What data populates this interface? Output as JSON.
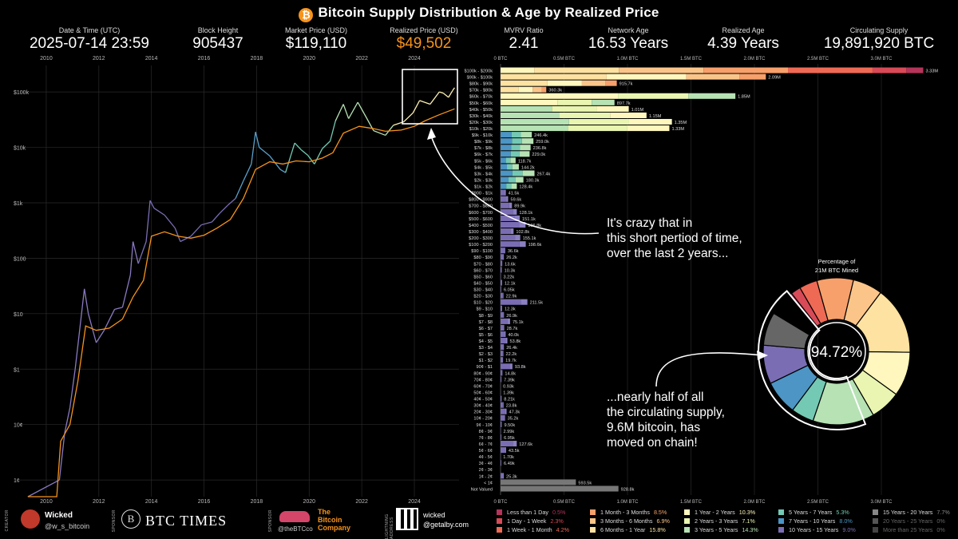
{
  "header": {
    "title": "Bitcoin Supply Distribution & Age by Realized Price",
    "logo_glyph": "₿",
    "stats": [
      {
        "label": "Date & Time (UTC)",
        "value": "2025-07-14 23:59",
        "color": "#ffffff"
      },
      {
        "label": "Block Height",
        "value": "905437",
        "color": "#ffffff"
      },
      {
        "label": "Market Price (USD)",
        "value": "$119,110",
        "color": "#ffffff"
      },
      {
        "label": "Realized Price (USD)",
        "value": "$49,502",
        "color": "#f7931a"
      },
      {
        "label": "MVRV Ratio",
        "value": "2.41",
        "color": "#ffffff"
      },
      {
        "label": "Network Age",
        "value": "16.53 Years",
        "color": "#ffffff"
      },
      {
        "label": "Realized Age",
        "value": "4.39 Years",
        "color": "#ffffff"
      },
      {
        "label": "Circulating Supply",
        "value": "19,891,920 BTC",
        "color": "#ffffff"
      }
    ]
  },
  "chart_data": [
    {
      "type": "line",
      "x_ticks": [
        "2010",
        "2012",
        "2014",
        "2016",
        "2018",
        "2020",
        "2022",
        "2024"
      ],
      "y_ticks": [
        "$100k",
        "$10k",
        "$1k",
        "$100",
        "$10",
        "$1",
        "10¢",
        "1¢"
      ],
      "y_scale": "log",
      "series": [
        {
          "values_desc": "market price",
          "color_by": "coin age",
          "points": [
            [
              2009.3,
              0.005
            ],
            [
              2010.5,
              0.01
            ],
            [
              2010.7,
              0.07
            ],
            [
              2010.9,
              0.2
            ],
            [
              2011.1,
              1
            ],
            [
              2011.45,
              28
            ],
            [
              2011.6,
              10
            ],
            [
              2011.9,
              3
            ],
            [
              2012.2,
              5
            ],
            [
              2012.6,
              12
            ],
            [
              2012.9,
              13
            ],
            [
              2013.2,
              50
            ],
            [
              2013.3,
              200
            ],
            [
              2013.5,
              80
            ],
            [
              2013.8,
              200
            ],
            [
              2013.95,
              1100
            ],
            [
              2014.1,
              800
            ],
            [
              2014.5,
              600
            ],
            [
              2014.9,
              350
            ],
            [
              2015.1,
              200
            ],
            [
              2015.5,
              250
            ],
            [
              2015.9,
              400
            ],
            [
              2016.3,
              450
            ],
            [
              2016.6,
              650
            ],
            [
              2016.9,
              900
            ],
            [
              2017.2,
              1200
            ],
            [
              2017.5,
              2500
            ],
            [
              2017.8,
              5000
            ],
            [
              2017.96,
              19000
            ],
            [
              2018.1,
              10000
            ],
            [
              2018.5,
              7000
            ],
            [
              2018.9,
              4000
            ],
            [
              2019.1,
              3500
            ],
            [
              2019.45,
              12000
            ],
            [
              2019.7,
              9000
            ],
            [
              2019.95,
              7200
            ],
            [
              2020.2,
              5000
            ],
            [
              2020.5,
              9500
            ],
            [
              2020.8,
              13000
            ],
            [
              2021.0,
              30000
            ],
            [
              2021.3,
              60000
            ],
            [
              2021.5,
              33000
            ],
            [
              2021.85,
              65000
            ],
            [
              2022.1,
              40000
            ],
            [
              2022.45,
              20000
            ],
            [
              2022.9,
              16500
            ],
            [
              2023.2,
              25000
            ],
            [
              2023.6,
              29000
            ],
            [
              2023.95,
              42000
            ],
            [
              2024.2,
              70000
            ],
            [
              2024.6,
              60000
            ],
            [
              2024.95,
              100000
            ],
            [
              2025.1,
              95000
            ],
            [
              2025.3,
              80000
            ],
            [
              2025.45,
              105000
            ],
            [
              2025.53,
              119110
            ]
          ]
        },
        {
          "values_desc": "realized price",
          "color": "#f7931a",
          "points": [
            [
              2009.3,
              0.005
            ],
            [
              2010.4,
              0.005
            ],
            [
              2010.55,
              0.05
            ],
            [
              2010.9,
              0.1
            ],
            [
              2011.2,
              0.6
            ],
            [
              2011.5,
              6
            ],
            [
              2011.9,
              5
            ],
            [
              2012.4,
              5.5
            ],
            [
              2012.9,
              8
            ],
            [
              2013.3,
              20
            ],
            [
              2013.7,
              40
            ],
            [
              2014.0,
              250
            ],
            [
              2014.5,
              300
            ],
            [
              2015.0,
              250
            ],
            [
              2015.5,
              230
            ],
            [
              2016.0,
              260
            ],
            [
              2016.5,
              350
            ],
            [
              2017.0,
              500
            ],
            [
              2017.5,
              1200
            ],
            [
              2017.96,
              4000
            ],
            [
              2018.5,
              5500
            ],
            [
              2019.0,
              5000
            ],
            [
              2019.5,
              5700
            ],
            [
              2020.0,
              5500
            ],
            [
              2020.5,
              6400
            ],
            [
              2020.9,
              8000
            ],
            [
              2021.3,
              18000
            ],
            [
              2021.9,
              24000
            ],
            [
              2022.4,
              22000
            ],
            [
              2022.9,
              19500
            ],
            [
              2023.5,
              20500
            ],
            [
              2024.0,
              24000
            ],
            [
              2024.4,
              30000
            ],
            [
              2024.9,
              38000
            ],
            [
              2025.53,
              49502
            ]
          ]
        }
      ]
    },
    {
      "type": "bar",
      "orientation": "horizontal",
      "stacked": true,
      "x_ticks": [
        "0 BTC",
        "0.5M BTC",
        "1.0M BTC",
        "1.5M BTC",
        "2.0M BTC",
        "2.5M BTC",
        "3.0M BTC"
      ],
      "x_max_btc": 3.3,
      "categories": [
        "$100k - $200k",
        "$90k - $100k",
        "$80k - $90k",
        "$70k - $80k",
        "$60k - $70k",
        "$50k - $60k",
        "$40k - $50k",
        "$30k - $40k",
        "$20k - $30k",
        "$10k - $20k",
        "$9k - $10k",
        "$8k - $9k",
        "$7k - $8k",
        "$6k - $7k",
        "$5k - $6k",
        "$4k - $5k",
        "$3k - $4k",
        "$2k - $3k",
        "$1k - $2k",
        "$900 - $1k",
        "$800 - $900",
        "$700 - $800",
        "$600 - $700",
        "$500 - $600",
        "$400 - $500",
        "$300 - $400",
        "$200 - $300",
        "$100 - $200",
        "$90 - $100",
        "$80 - $90",
        "$70 - $80",
        "$60 - $70",
        "$50 - $60",
        "$40 - $50",
        "$30 - $40",
        "$20 - $30",
        "$10 - $20",
        "$9 - $10",
        "$8 - $9",
        "$7 - $8",
        "$6 - $7",
        "$5 - $6",
        "$4 - $5",
        "$3 - $4",
        "$2 - $3",
        "$1 - $2",
        "90¢ - $1",
        "80¢ - 90¢",
        "70¢ - 80¢",
        "60¢ - 70¢",
        "50¢ - 60¢",
        "40¢ - 50¢",
        "30¢ - 40¢",
        "20¢ - 30¢",
        "10¢ - 20¢",
        "9¢ - 10¢",
        "8¢ - 9¢",
        "7¢ - 8¢",
        "6¢ - 7¢",
        "5¢ - 6¢",
        "4¢ - 5¢",
        "3¢ - 4¢",
        "2¢ - 3¢",
        "1¢ - 2¢",
        "< 1¢",
        "Not Valued"
      ],
      "value_labels": [
        "3.33M",
        "2.09M",
        "915.7k",
        "360.3k",
        "1.85M",
        "897.7k",
        "1.01M",
        "1.15M",
        "1.35M",
        "1.33M",
        "246.4k",
        "259.0k",
        "236.8k",
        "229.0k",
        "118.7k",
        "144.2k",
        "267.4k",
        "180.3k",
        "128.4k",
        "41.5k",
        "59.6k",
        "89.9k",
        "128.1k",
        "151.1k",
        "196.8k",
        "102.8k",
        "155.1k",
        "198.6k",
        "36.6k",
        "26.2k",
        "13.6k",
        "10.3k",
        "3.22k",
        "12.1k",
        "6.05k",
        "22.9k",
        "211.5k",
        "12.3k",
        "26.9k",
        "75.1k",
        "28.7k",
        "40.0k",
        "53.8k",
        "26.4k",
        "22.2k",
        "19.7k",
        "93.8k",
        "14.8k",
        "7.39k",
        "0.93k",
        "1.39k",
        "8.21k",
        "23.8k",
        "47.3k",
        "35.2k",
        "9.50k",
        "2.99k",
        "6.95k",
        "127.6k",
        "43.5k",
        "1.70k",
        "6.49k",
        "",
        "25.3k",
        "593.5k",
        "928.8k"
      ],
      "values": [
        3330000,
        2090000,
        915700,
        360300,
        1850000,
        897700,
        1010000,
        1150000,
        1350000,
        1330000,
        246400,
        259000,
        236800,
        229000,
        118700,
        144200,
        267400,
        180300,
        128400,
        41500,
        59600,
        89900,
        128100,
        151100,
        196800,
        102800,
        155100,
        198600,
        36600,
        26200,
        13600,
        10300,
        3220,
        12100,
        6050,
        22900,
        211500,
        12300,
        26900,
        75100,
        28700,
        40000,
        53800,
        26400,
        22200,
        19700,
        93800,
        14800,
        7390,
        930,
        1390,
        8210,
        23800,
        47300,
        35200,
        9500,
        2990,
        6950,
        127600,
        43500,
        1700,
        6490,
        0,
        25300,
        593500,
        928800
      ]
    },
    {
      "type": "pie",
      "donut": true,
      "title": "Percentage of 21M BTC Mined",
      "center_label": "94.72%",
      "slices": [
        {
          "name": "Less than 1 Day",
          "value": 0.5,
          "color": "#b5345a"
        },
        {
          "name": "1 Day - 1 Week",
          "value": 2.3,
          "color": "#d84a57"
        },
        {
          "name": "1 Week - 1 Month",
          "value": 4.2,
          "color": "#ee6a55"
        },
        {
          "name": "1 Month - 3 Months",
          "value": 8.5,
          "color": "#f7a06b"
        },
        {
          "name": "3 Months - 6 Months",
          "value": 6.9,
          "color": "#fbc58a"
        },
        {
          "name": "6 Months - 1 Year",
          "value": 15.8,
          "color": "#fde2a2"
        },
        {
          "name": "1 Year - 2 Years",
          "value": 10.3,
          "color": "#fff7bd"
        },
        {
          "name": "2 Years - 3 Years",
          "value": 7.1,
          "color": "#e9f5b0"
        },
        {
          "name": "3 Years - 5 Years",
          "value": 14.3,
          "color": "#b6e2b4"
        },
        {
          "name": "5 Years - 7 Years",
          "value": 5.3,
          "color": "#74c9b4"
        },
        {
          "name": "7 Years - 10 Years",
          "value": 8.0,
          "color": "#4c95c4"
        },
        {
          "name": "10 Years - 15 Years",
          "value": 9.0,
          "color": "#7b6db4"
        },
        {
          "name": "15 Years - 20 Years",
          "value": 7.7,
          "color": "#666666"
        },
        {
          "name": "20 Years - 25 Years",
          "value": 0,
          "color": "#444444"
        },
        {
          "name": "More than 25 Years",
          "value": 0,
          "color": "#333333"
        }
      ]
    }
  ],
  "legend": [
    {
      "name": "Less than 1 Day",
      "pct": "0.5%",
      "color": "#b5345a"
    },
    {
      "name": "1 Day - 1 Week",
      "pct": "2.3%",
      "color": "#d84a57"
    },
    {
      "name": "1 Week - 1 Month",
      "pct": "4.2%",
      "color": "#ee6a55"
    },
    {
      "name": "1 Month - 3 Months",
      "pct": "8.5%",
      "color": "#f7a06b"
    },
    {
      "name": "3 Months - 6 Months",
      "pct": "6.9%",
      "color": "#fbc58a"
    },
    {
      "name": "6 Months - 1 Year",
      "pct": "15.8%",
      "color": "#fde2a2"
    },
    {
      "name": "1 Year - 2 Years",
      "pct": "10.3%",
      "color": "#fff7bd"
    },
    {
      "name": "2 Years - 3 Years",
      "pct": "7.1%",
      "color": "#e9f5b0"
    },
    {
      "name": "3 Years - 5 Years",
      "pct": "14.3%",
      "color": "#b6e2b4"
    },
    {
      "name": "5 Years - 7 Years",
      "pct": "5.3%",
      "color": "#74c9b4"
    },
    {
      "name": "7 Years - 10 Years",
      "pct": "8.0%",
      "color": "#4c95c4"
    },
    {
      "name": "10 Years - 15 Years",
      "pct": "9.0%",
      "color": "#7b6db4"
    },
    {
      "name": "15 Years - 20 Years",
      "pct": "7.7%",
      "color": "#888888"
    },
    {
      "name": "20 Years - 25 Years",
      "pct": "0%",
      "color": "#555555"
    },
    {
      "name": "More than 25 Years",
      "pct": "0%",
      "color": "#444444"
    }
  ],
  "annotations": {
    "top": [
      "It's crazy that in",
      "this short pertiod of time,",
      "over the last 2 years..."
    ],
    "bottom": [
      "...nearly half of all",
      "the circulating supply,",
      "9.6M bitcoin, has",
      "moved on chain!"
    ]
  },
  "footer": {
    "creator_tag": "CREATOR",
    "creator_name": "Wicked",
    "creator_handle": "@w_s_bitcoin",
    "sponsor_tag": "SPONSOR",
    "sponsor1": "BTC TIMES",
    "sponsor1_logo": "B",
    "sponsor2_tag": "SPONSOR",
    "sponsor2_handle": "@theBTCco",
    "sponsor2_name_1": "The",
    "sponsor2_name_2": "Bitcoin",
    "sponsor2_name_3": "Company",
    "lightning_tag": "LIGHTNING ADDRESS",
    "lightning_name": "wicked",
    "lightning_addr": "@getalby.com"
  }
}
